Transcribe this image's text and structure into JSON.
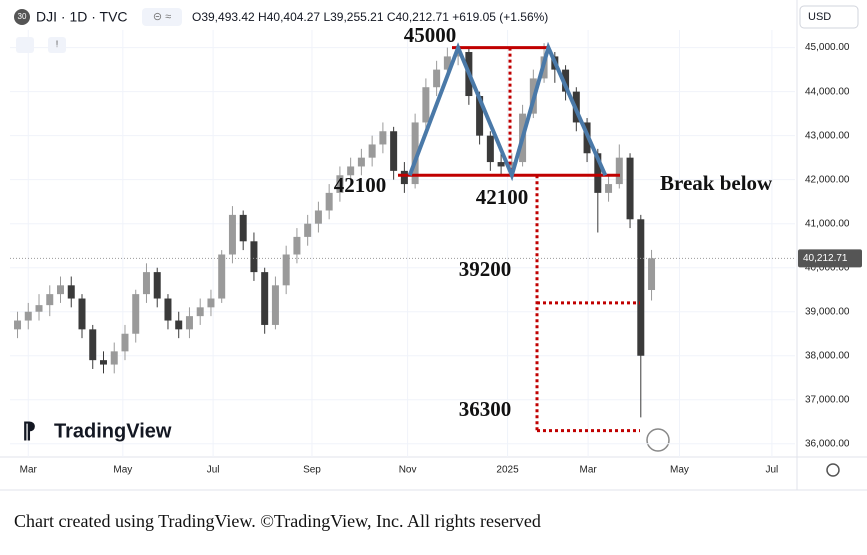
{
  "header": {
    "badge": "30",
    "symbol": "DJI · 1D · TVC",
    "ohlc": "O39,493.42 H40,404.27 L39,255.21 C40,212.71 +619.05 (+1.56%)",
    "currency": "USD"
  },
  "logo": "TradingView",
  "caption": "Chart created using TradingView. ©TradingView, Inc. All rights reserved",
  "chart_data": {
    "type": "candlestick",
    "x": [
      -1,
      0,
      1,
      2,
      3,
      4,
      5,
      6,
      7,
      8,
      9,
      10,
      11,
      12,
      13,
      14,
      15,
      16,
      17,
      18,
      19,
      20,
      21,
      22,
      23,
      24,
      25,
      26,
      27,
      28,
      29,
      30,
      31,
      32,
      33,
      34,
      35,
      36,
      37,
      38,
      39,
      40,
      41,
      42,
      43,
      44,
      45,
      46,
      47,
      48,
      49,
      50,
      51,
      52,
      53,
      54,
      55,
      56,
      57,
      58
    ],
    "open": [
      38600,
      38800,
      39000,
      39150,
      39400,
      39600,
      39300,
      38600,
      37900,
      37800,
      38100,
      38500,
      39400,
      39900,
      39300,
      38800,
      38600,
      38900,
      39100,
      39300,
      40300,
      41200,
      40600,
      39900,
      38700,
      39600,
      40300,
      40700,
      41000,
      41300,
      41700,
      42100,
      42300,
      42500,
      42800,
      43100,
      42200,
      41900,
      43300,
      44100,
      44500,
      44800,
      44900,
      43900,
      43000,
      42400,
      42300,
      42400,
      43500,
      44300,
      44800,
      44500,
      44000,
      43300,
      42600,
      41700,
      41900,
      42500,
      41100,
      39493.42
    ],
    "high": [
      39000,
      39200,
      39400,
      39600,
      39800,
      39800,
      39400,
      38700,
      38100,
      38300,
      38700,
      39500,
      40100,
      40000,
      39400,
      39000,
      39100,
      39300,
      39500,
      40400,
      41400,
      41300,
      40800,
      40000,
      39800,
      40500,
      40900,
      41200,
      41500,
      41900,
      42300,
      42500,
      42700,
      43000,
      43300,
      43200,
      42400,
      43500,
      44300,
      44700,
      45000,
      45100,
      45000,
      44000,
      43100,
      42700,
      42600,
      43700,
      44500,
      45100,
      44900,
      44600,
      44100,
      43400,
      42700,
      42100,
      42800,
      42600,
      41200,
      40404.27
    ],
    "low": [
      38400,
      38600,
      38800,
      38900,
      39200,
      39100,
      38400,
      37700,
      37600,
      37600,
      37900,
      38300,
      39200,
      39100,
      38600,
      38400,
      38400,
      38700,
      38900,
      39200,
      40100,
      40400,
      39700,
      38500,
      38600,
      39400,
      40100,
      40500,
      40800,
      41100,
      41500,
      41900,
      42100,
      42300,
      42600,
      42000,
      41700,
      41800,
      43100,
      43900,
      44300,
      44600,
      43700,
      42800,
      42200,
      42100,
      42100,
      42300,
      43400,
      44200,
      44200,
      43800,
      43100,
      42400,
      40800,
      41500,
      41800,
      40900,
      36600,
      39255.21
    ],
    "close": [
      38800,
      39000,
      39150,
      39400,
      39600,
      39300,
      38600,
      37900,
      37800,
      38100,
      38500,
      39400,
      39900,
      39300,
      38800,
      38600,
      38900,
      39100,
      39300,
      40300,
      41200,
      40600,
      39900,
      38700,
      39600,
      40300,
      40700,
      41000,
      41300,
      41700,
      42100,
      42300,
      42500,
      42800,
      43100,
      42200,
      41900,
      43300,
      44100,
      44500,
      44800,
      44900,
      43900,
      43000,
      42400,
      42300,
      42400,
      43500,
      44300,
      44800,
      44500,
      44000,
      43300,
      42600,
      41700,
      41900,
      42500,
      41100,
      38000,
      40212.71
    ],
    "up_color": "#9a9a9a",
    "down_color": "#3a3a3a",
    "xlim": [
      -1.7,
      71.35
    ],
    "xticks": [
      {
        "value": 0,
        "label": "Mar"
      },
      {
        "value": 8.8,
        "label": "May"
      },
      {
        "value": 17.2,
        "label": "Jul"
      },
      {
        "value": 26.4,
        "label": "Sep"
      },
      {
        "value": 35.3,
        "label": "Nov"
      },
      {
        "value": 44.6,
        "label": "2025"
      },
      {
        "value": 52.1,
        "label": "Mar"
      },
      {
        "value": 60.6,
        "label": "May"
      },
      {
        "value": 69.2,
        "label": "Jul"
      }
    ],
    "ylim": [
      35700,
      45400
    ],
    "yticks": [
      {
        "value": 36000,
        "label": "36,000.00"
      },
      {
        "value": 37000,
        "label": "37,000.00"
      },
      {
        "value": 38000,
        "label": "38,000.00"
      },
      {
        "value": 39000,
        "label": "39,000.00"
      },
      {
        "value": 40000,
        "label": "40,000.00"
      },
      {
        "value": 41000,
        "label": "41,000.00"
      },
      {
        "value": 42000,
        "label": "42,000.00"
      },
      {
        "value": 43000,
        "label": "43,000.00"
      },
      {
        "value": 44000,
        "label": "44,000.00"
      },
      {
        "value": 45000,
        "label": "45,000.00"
      }
    ],
    "last_price": {
      "value": 40212.71,
      "label": "40,212.71"
    },
    "levels": {
      "top": 45000,
      "neckline": 42100,
      "target1": 39200,
      "target2": 36300
    },
    "pattern": {
      "x": [
        35.5,
        40,
        45,
        48.4,
        53.7
      ],
      "values": [
        42100,
        45000,
        42100,
        45000,
        42100
      ],
      "color": "#4a79a8"
    },
    "level_color": "#c00000",
    "annotation": "Break below"
  }
}
